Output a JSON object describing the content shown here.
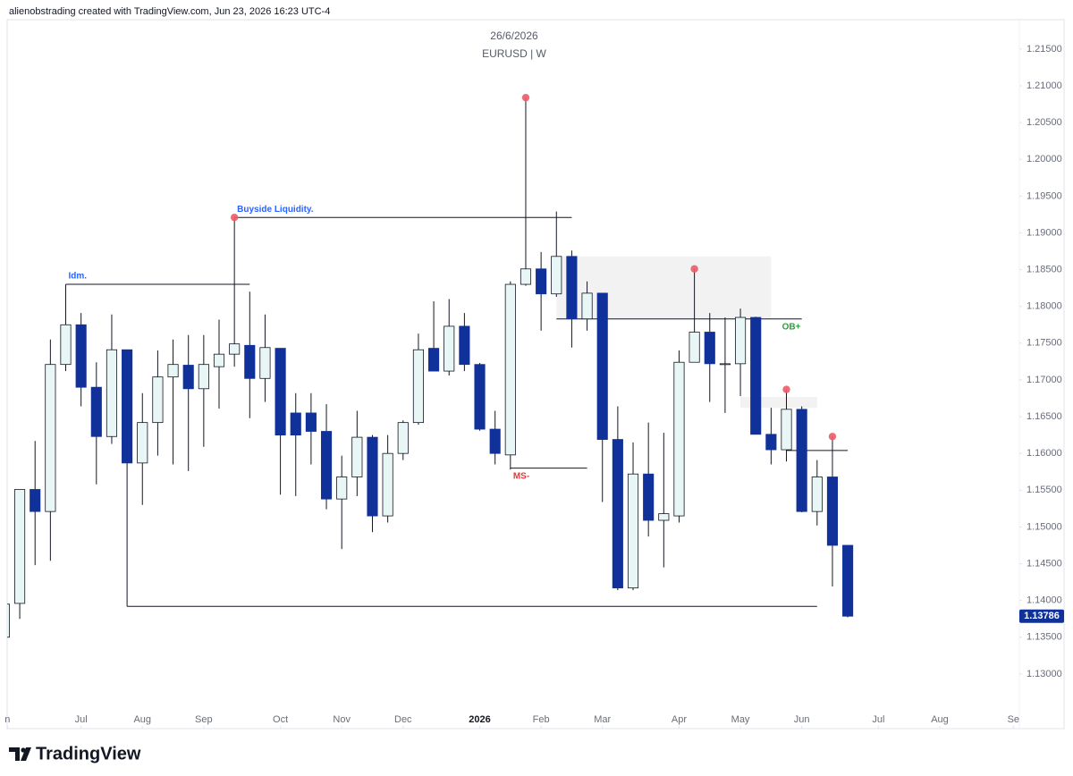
{
  "header": "alienobstrading created with TradingView.com, Jun 23, 2026 16:23 UTC-4",
  "footer": "TradingView",
  "chart_data": {
    "type": "candlestick",
    "subtitle": "26/6/2026",
    "title": "EURUSD | W",
    "x": [
      0,
      1,
      2,
      3,
      4,
      5,
      6,
      7,
      8,
      9,
      10,
      11,
      12,
      13,
      14,
      15,
      16,
      17,
      18,
      19,
      20,
      21,
      22,
      23,
      24,
      25,
      26,
      27,
      28,
      29,
      30,
      31,
      32,
      33,
      34,
      35,
      36,
      37,
      38,
      39,
      40,
      41,
      42,
      43,
      44,
      45,
      46,
      47,
      48,
      49,
      50,
      51,
      52,
      53,
      54,
      55
    ],
    "open": [
      1.135,
      1.1396,
      1.1551,
      1.1521,
      1.1721,
      1.1775,
      1.169,
      1.1623,
      1.1741,
      1.1587,
      1.1642,
      1.1704,
      1.172,
      1.1688,
      1.1718,
      1.1735,
      1.1747,
      1.1702,
      1.1743,
      1.1655,
      1.1655,
      1.163,
      1.1538,
      1.1568,
      1.1622,
      1.1515,
      1.16,
      1.1642,
      1.1743,
      1.1712,
      1.1773,
      1.1721,
      1.1633,
      1.1598,
      1.183,
      1.1851,
      1.1817,
      1.1868,
      1.1783,
      1.1818,
      1.1619,
      1.1417,
      1.1572,
      1.1509,
      1.1515,
      1.1724,
      1.1765,
      1.1721,
      1.1722,
      1.1785,
      1.1626,
      1.1605,
      1.166,
      1.1521,
      1.1568,
      1.1475
    ],
    "high": [
      1.1396,
      1.1551,
      1.1617,
      1.1755,
      1.183,
      1.1791,
      1.1724,
      1.1789,
      1.1741,
      1.1682,
      1.174,
      1.1755,
      1.1761,
      1.1761,
      1.1782,
      1.1921,
      1.182,
      1.1789,
      1.1743,
      1.1682,
      1.1682,
      1.1667,
      1.1597,
      1.1658,
      1.1625,
      1.1625,
      1.1645,
      1.1763,
      1.1807,
      1.181,
      1.1791,
      1.1723,
      1.1658,
      1.1834,
      1.2084,
      1.1874,
      1.1929,
      1.1876,
      1.1834,
      1.1818,
      1.1664,
      1.1615,
      1.1642,
      1.1628,
      1.174,
      1.1851,
      1.1791,
      1.1785,
      1.1797,
      1.1786,
      1.1662,
      1.1687,
      1.1664,
      1.1591,
      1.1623,
      1.1475
    ],
    "low": [
      1.135,
      1.1375,
      1.1448,
      1.1454,
      1.1712,
      1.1664,
      1.1558,
      1.1613,
      1.1392,
      1.153,
      1.1597,
      1.1585,
      1.1576,
      1.1609,
      1.1661,
      1.1718,
      1.1648,
      1.167,
      1.1544,
      1.1542,
      1.1585,
      1.1524,
      1.147,
      1.1542,
      1.1493,
      1.1506,
      1.1591,
      1.1639,
      1.1712,
      1.1706,
      1.1712,
      1.1631,
      1.1585,
      1.1578,
      1.1828,
      1.1767,
      1.1813,
      1.1744,
      1.1767,
      1.1534,
      1.1414,
      1.1414,
      1.1487,
      1.1445,
      1.1506,
      1.1724,
      1.167,
      1.1655,
      1.1678,
      1.1626,
      1.1585,
      1.1589,
      1.152,
      1.1502,
      1.1419,
      1.1377
    ],
    "close": [
      1.1395,
      1.1551,
      1.1521,
      1.1721,
      1.1775,
      1.169,
      1.1623,
      1.1741,
      1.1587,
      1.1642,
      1.1704,
      1.1721,
      1.1688,
      1.1721,
      1.1735,
      1.1749,
      1.1702,
      1.1744,
      1.1625,
      1.1625,
      1.163,
      1.1538,
      1.1568,
      1.1622,
      1.1515,
      1.16,
      1.1642,
      1.1741,
      1.1712,
      1.1773,
      1.1721,
      1.1633,
      1.16,
      1.183,
      1.1851,
      1.1817,
      1.1868,
      1.1783,
      1.1818,
      1.1619,
      1.1417,
      1.1572,
      1.1509,
      1.1518,
      1.1724,
      1.1765,
      1.1722,
      1.1722,
      1.1785,
      1.1626,
      1.1605,
      1.166,
      1.1521,
      1.1568,
      1.1475,
      1.13786
    ],
    "up_color": "#e8f6f6",
    "down_color": "#10309a",
    "xlim": [
      0.18,
      66.19
    ],
    "xticks": [
      {
        "value": 0.2,
        "label": "n"
      },
      {
        "value": 5,
        "label": "Jul"
      },
      {
        "value": 9,
        "label": "Aug"
      },
      {
        "value": 13,
        "label": "Sep"
      },
      {
        "value": 18,
        "label": "Oct"
      },
      {
        "value": 22,
        "label": "Nov"
      },
      {
        "value": 26,
        "label": "Dec"
      },
      {
        "value": 31,
        "label": "2026",
        "bold": true
      },
      {
        "value": 35,
        "label": "Feb"
      },
      {
        "value": 39,
        "label": "Mar"
      },
      {
        "value": 44,
        "label": "Apr"
      },
      {
        "value": 48,
        "label": "May"
      },
      {
        "value": 52,
        "label": "Jun"
      },
      {
        "value": 57,
        "label": "Jul"
      },
      {
        "value": 61,
        "label": "Aug"
      },
      {
        "value": 65.8,
        "label": "Se"
      }
    ],
    "ylim": [
      1.125,
      1.219
    ],
    "yticks": [
      {
        "value": 1.13,
        "label": "1.13000"
      },
      {
        "value": 1.135,
        "label": "1.13500"
      },
      {
        "value": 1.14,
        "label": "1.14000"
      },
      {
        "value": 1.145,
        "label": "1.14500"
      },
      {
        "value": 1.15,
        "label": "1.15000"
      },
      {
        "value": 1.155,
        "label": "1.15500"
      },
      {
        "value": 1.16,
        "label": "1.16000"
      },
      {
        "value": 1.165,
        "label": "1.16500"
      },
      {
        "value": 1.17,
        "label": "1.17000"
      },
      {
        "value": 1.175,
        "label": "1.17500"
      },
      {
        "value": 1.18,
        "label": "1.18000"
      },
      {
        "value": 1.185,
        "label": "1.18500"
      },
      {
        "value": 1.19,
        "label": "1.19000"
      },
      {
        "value": 1.195,
        "label": "1.19500"
      },
      {
        "value": 1.2,
        "label": "1.20000"
      },
      {
        "value": 1.205,
        "label": "1.20500"
      },
      {
        "value": 1.21,
        "label": "1.21000"
      },
      {
        "value": 1.215,
        "label": "1.21500"
      }
    ],
    "grid": false,
    "markers": {
      "color": "#ee5a68",
      "x": [
        15,
        34,
        45,
        51,
        54
      ],
      "y": [
        1.1921,
        1.2084,
        1.1851,
        1.1687,
        1.1623
      ]
    },
    "zones": [
      {
        "x": [
          36,
          50
        ],
        "y": [
          1.1783,
          1.1868
        ],
        "color": "#f2f2f3"
      },
      {
        "x": [
          48,
          53
        ],
        "y": [
          1.1662,
          1.1677
        ],
        "color": "#f2f2f3"
      }
    ],
    "lines": [
      {
        "x": [
          4,
          16
        ],
        "y": 1.183,
        "label": "Idm.",
        "label_color": "#2962ff",
        "label_position": "above-start"
      },
      {
        "x": [
          15,
          37
        ],
        "y": 1.1921,
        "label": "Buyside Liquidity.",
        "label_color": "#2962ff",
        "label_position": "above-start"
      },
      {
        "x": [
          33,
          38
        ],
        "y": 1.158,
        "label": "MS-",
        "label_color": "#e53935",
        "label_position": "below-start"
      },
      {
        "x": [
          36,
          52
        ],
        "y": 1.1783,
        "label": "OB+",
        "label_color": "#2e9d3e",
        "label_position": "below-end"
      },
      {
        "x": [
          8,
          53
        ],
        "y": 1.1392
      },
      {
        "x": [
          51,
          55
        ],
        "y": 1.1604
      }
    ]
  }
}
